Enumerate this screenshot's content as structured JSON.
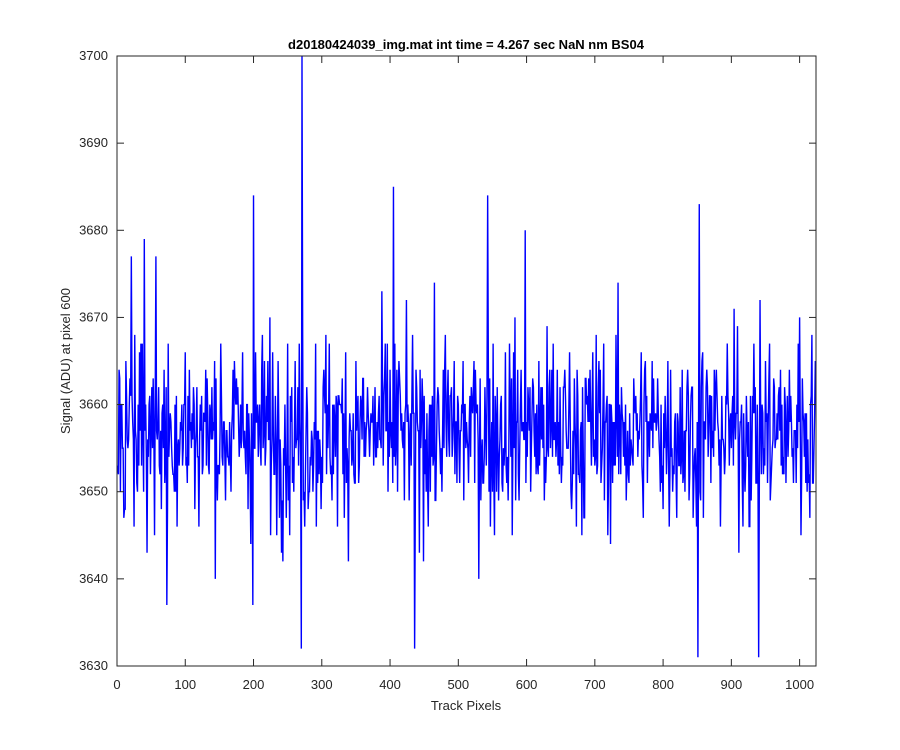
{
  "chart_data": {
    "type": "line",
    "title": "d20180424039_img.mat int time = 4.267 sec  NaN nm BS04",
    "xlabel": "Track Pixels",
    "ylabel": "Signal (ADU) at pixel 600",
    "xlim": [
      0,
      1024
    ],
    "ylim": [
      3630,
      3700
    ],
    "xticks": [
      0,
      100,
      200,
      300,
      400,
      500,
      600,
      700,
      800,
      900,
      1000
    ],
    "yticks": [
      3630,
      3640,
      3650,
      3660,
      3670,
      3680,
      3690,
      3700
    ],
    "grid": false,
    "box": true,
    "line_color": "#0000ff",
    "series": [
      {
        "x": [
          1,
          1024
        ],
        "samples": 1024,
        "baseline": 3657,
        "spread": 5.5,
        "ymin": 3631,
        "ymax": 3700,
        "notable_points": [
          {
            "x": 11,
            "y": 3648
          },
          {
            "x": 21,
            "y": 3677
          },
          {
            "x": 40,
            "y": 3679
          },
          {
            "x": 57,
            "y": 3677
          },
          {
            "x": 73,
            "y": 3637
          },
          {
            "x": 199,
            "y": 3637
          },
          {
            "x": 200,
            "y": 3684
          },
          {
            "x": 270,
            "y": 3632
          },
          {
            "x": 271,
            "y": 3700
          },
          {
            "x": 405,
            "y": 3685
          },
          {
            "x": 436,
            "y": 3632
          },
          {
            "x": 543,
            "y": 3684
          },
          {
            "x": 598,
            "y": 3680
          },
          {
            "x": 851,
            "y": 3631
          },
          {
            "x": 853,
            "y": 3683
          },
          {
            "x": 940,
            "y": 3631
          },
          {
            "x": 1000,
            "y": 3670
          },
          {
            "x": 1018,
            "y": 3668
          }
        ]
      }
    ]
  }
}
